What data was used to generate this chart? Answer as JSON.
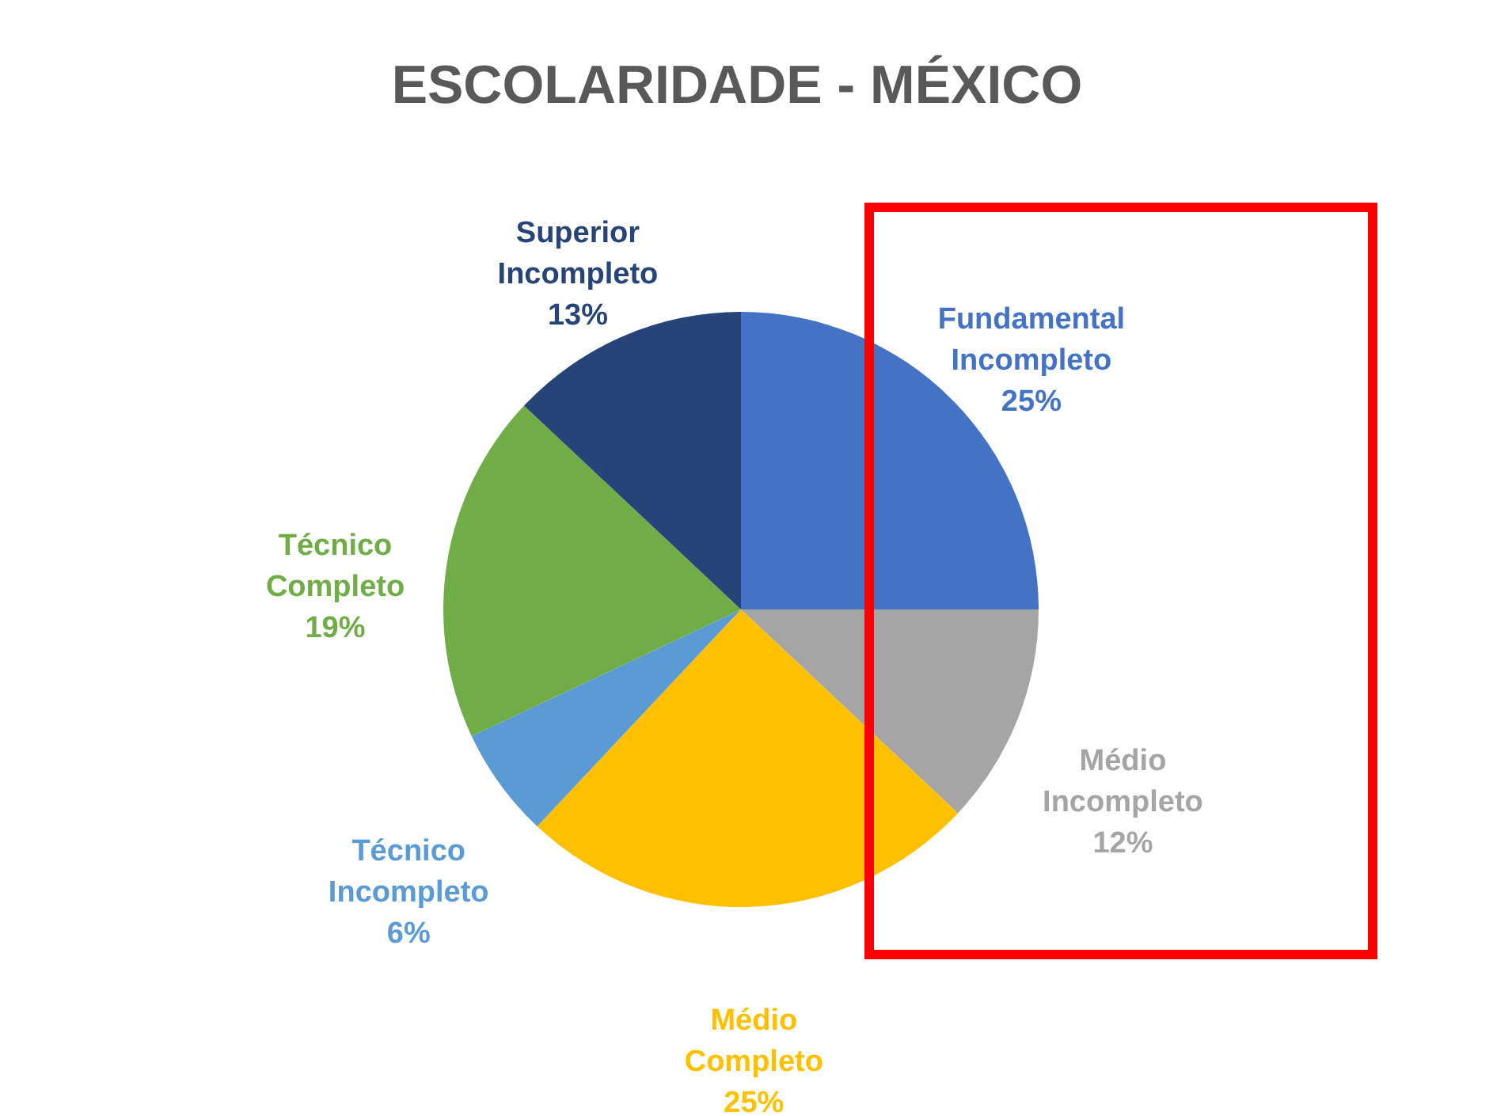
{
  "chart_data": {
    "type": "pie",
    "title": "ESCOLARIDADE - MÉXICO",
    "categories": [
      "Fundamental Incompleto",
      "Médio Incompleto",
      "Médio Completo",
      "Técnico Incompleto",
      "Técnico Completo",
      "Superior Incompleto"
    ],
    "values": [
      25,
      12,
      25,
      6,
      19,
      13
    ],
    "colors": [
      "#4472c4",
      "#a5a5a5",
      "#ffc000",
      "#5b9bd5",
      "#70ad47",
      "#264478"
    ],
    "value_labels": [
      "25%",
      "12%",
      "25%",
      "6%",
      "19%",
      "13%"
    ]
  }
}
